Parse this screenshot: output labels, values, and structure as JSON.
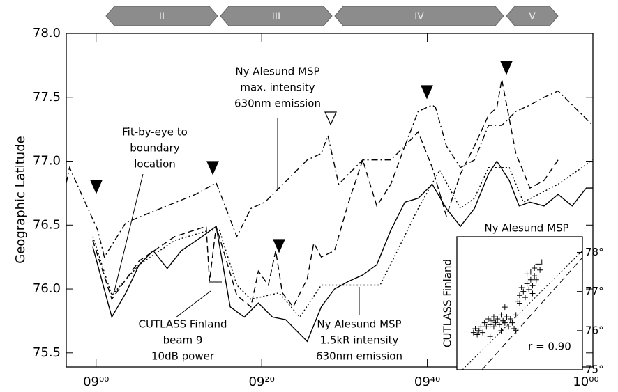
{
  "chart_data": [
    {
      "type": "line",
      "y_label": "Geographic Latitude",
      "phases": [
        "II",
        "III",
        "IV",
        "V"
      ],
      "annotations": [
        [
          "Ny Alesund MSP",
          "max. intensity",
          "630nm emission"
        ],
        [
          "Fit-by-eye to",
          "boundary",
          "location"
        ],
        [
          "CUTLASS Finland",
          "beam 9",
          "10dB power"
        ],
        [
          "Ny Alesund MSP",
          "1.5kR intensity",
          "630nm emission"
        ]
      ],
      "xlim": [
        536.4,
        600
      ],
      "xticks": [
        {
          "value": 540,
          "label": "09⁰⁰"
        },
        {
          "value": 560,
          "label": "09²⁰"
        },
        {
          "value": 580,
          "label": "09⁴⁰"
        },
        {
          "value": 600,
          "label": "10⁰⁰"
        }
      ],
      "ylim": [
        75.39,
        78.0
      ],
      "yticks": [
        75.5,
        {
          "value": 76,
          "label": "76.0"
        },
        76.5,
        {
          "value": 77,
          "label": "77.0"
        },
        77.5,
        {
          "value": 78,
          "label": "78.0"
        }
      ],
      "series": [
        {
          "color": "#000000",
          "style": "dashdot",
          "x": [
            536.4,
            536.8,
            540.2,
            541.0,
            543.6,
            547.8,
            552.0,
            554.5,
            555.4,
            557.0,
            558.7,
            560.4,
            562.1,
            563.8,
            565.5,
            567.2,
            568.0,
            569.3,
            570.5,
            572.2,
            573.9,
            575.6,
            577.3,
            578.9,
            580.6,
            581.0,
            582.3,
            584.0,
            585.7,
            587.4,
            589.0,
            590.7,
            592.4,
            594.1,
            595.8,
            597.5,
            600.0
          ],
          "values": [
            76.83,
            76.95,
            76.46,
            76.25,
            76.52,
            76.63,
            76.74,
            76.83,
            76.68,
            76.41,
            76.63,
            76.68,
            76.79,
            76.9,
            77.01,
            77.06,
            77.2,
            76.82,
            76.9,
            77.01,
            77.01,
            77.01,
            77.12,
            77.39,
            77.44,
            77.42,
            77.12,
            76.95,
            77.01,
            77.28,
            77.28,
            77.39,
            77.44,
            77.5,
            77.55,
            77.44,
            77.28
          ]
        },
        {
          "color": "#000000",
          "style": "solid",
          "x": [
            539.6,
            541.9,
            543.6,
            545.2,
            546.9,
            548.6,
            550.3,
            552.8,
            554.5,
            556.2,
            557.9,
            559.6,
            561.3,
            562.9,
            563.8,
            565.5,
            567.2,
            568.8,
            570.5,
            572.2,
            573.9,
            575.6,
            577.3,
            578.9,
            580.6,
            582.3,
            584.0,
            585.7,
            587.4,
            588.4,
            589.9,
            591.1,
            592.4,
            594.1,
            595.8,
            597.5,
            599.2,
            600.0
          ],
          "values": [
            76.33,
            75.78,
            75.97,
            76.19,
            76.3,
            76.16,
            76.3,
            76.41,
            76.49,
            75.86,
            75.78,
            75.89,
            75.78,
            75.76,
            75.7,
            75.59,
            75.86,
            76.0,
            76.06,
            76.11,
            76.19,
            76.46,
            76.68,
            76.71,
            76.82,
            76.63,
            76.49,
            76.63,
            76.9,
            77.0,
            76.85,
            76.65,
            76.68,
            76.65,
            76.74,
            76.65,
            76.79,
            76.79
          ]
        },
        {
          "color": "#000000",
          "style": "dotted",
          "x": [
            539.6,
            541.9,
            545.2,
            549.5,
            553.7,
            554.9,
            557.0,
            558.7,
            562.1,
            564.6,
            567.2,
            574.3,
            576.4,
            578.9,
            581.5,
            584.0,
            585.7,
            587.4,
            589.9,
            591.6,
            595.8,
            600.0
          ],
          "values": [
            76.41,
            75.95,
            76.19,
            76.38,
            76.46,
            76.46,
            76.03,
            75.92,
            75.97,
            75.78,
            76.03,
            76.03,
            76.3,
            76.63,
            76.93,
            76.63,
            76.71,
            76.95,
            76.95,
            76.68,
            76.82,
            77.01
          ]
        },
        {
          "color": "#000000",
          "style": "dashed",
          "x": [
            539.6,
            541.9,
            545.2,
            549.5,
            553.3,
            553.7,
            554.5,
            557.0,
            558.7,
            559.6,
            560.8,
            561.7,
            562.5,
            563.8,
            565.5,
            566.3,
            567.2,
            568.8,
            570.5,
            572.2,
            573.9,
            575.6,
            577.3,
            578.9,
            580.6,
            582.3,
            584.0,
            585.7,
            587.4,
            588.4,
            589.0,
            590.7,
            592.4,
            594.1,
            595.8
          ],
          "values": [
            76.38,
            75.92,
            76.22,
            76.41,
            76.49,
            76.06,
            76.49,
            75.95,
            75.86,
            76.14,
            76.03,
            76.3,
            75.97,
            75.86,
            76.08,
            76.36,
            76.25,
            76.3,
            76.68,
            77.01,
            76.65,
            76.82,
            77.12,
            77.23,
            76.95,
            76.57,
            76.9,
            77.12,
            77.36,
            77.42,
            77.64,
            77.06,
            76.79,
            76.85,
            77.01
          ]
        }
      ]
    },
    {
      "type": "scatter",
      "title": "Ny Alesund MSP",
      "y_label": "CUTLASS Finland",
      "annotation": "r = 0.90",
      "color": "#000000",
      "xlim": [
        75,
        78.4
      ],
      "ylim": [
        75,
        78.4
      ],
      "yticks": [
        {
          "value": 75,
          "label": "75°"
        },
        {
          "value": 76,
          "label": "76°"
        },
        {
          "value": 77,
          "label": "77°"
        },
        {
          "value": 78,
          "label": "78°"
        }
      ],
      "x": [
        75.45,
        75.5,
        75.55,
        75.6,
        75.65,
        75.7,
        75.75,
        75.8,
        75.85,
        75.9,
        75.95,
        76.0,
        76.0,
        76.05,
        76.1,
        76.15,
        76.2,
        76.25,
        76.3,
        76.35,
        76.4,
        76.45,
        76.5,
        76.55,
        76.6,
        76.6,
        76.65,
        76.7,
        76.75,
        76.8,
        76.85,
        76.9,
        76.95,
        77.0,
        77.0,
        77.05,
        77.1,
        77.1,
        77.15,
        77.2,
        77.25,
        77.3,
        76.3,
        76.2,
        75.9,
        76.7,
        76.9,
        77.05
      ],
      "values": [
        75.95,
        76.05,
        75.9,
        76.0,
        76.1,
        75.95,
        76.2,
        76.1,
        76.3,
        76.15,
        76.25,
        76.35,
        76.1,
        76.2,
        76.3,
        76.15,
        76.4,
        76.25,
        76.2,
        76.35,
        76.1,
        76.3,
        76.2,
        76.05,
        76.0,
        76.4,
        76.75,
        76.9,
        77.1,
        77.0,
        76.85,
        77.2,
        77.05,
        77.3,
        77.5,
        77.15,
        77.4,
        77.6,
        77.3,
        77.7,
        77.55,
        77.75,
        76.6,
        76.0,
        75.85,
        76.7,
        77.45,
        76.95
      ]
    }
  ]
}
